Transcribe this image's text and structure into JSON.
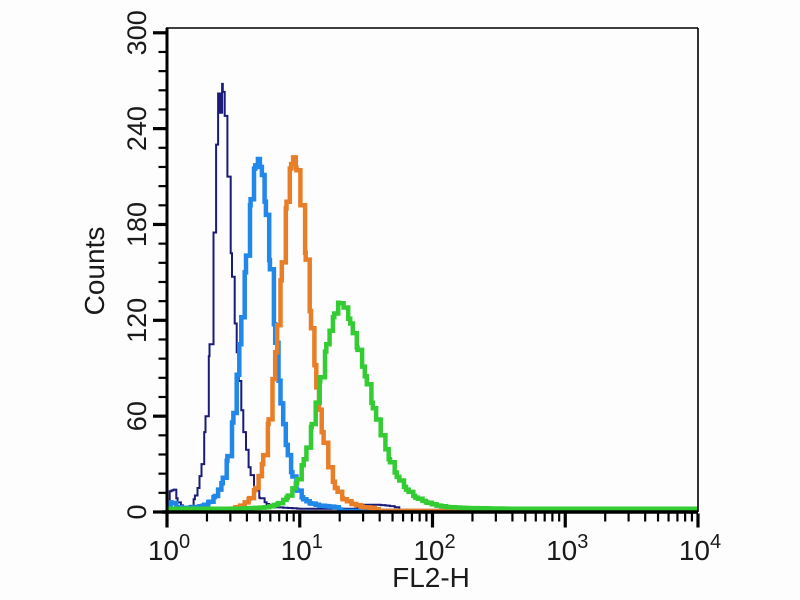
{
  "figure": {
    "xlabel": "FL2-H",
    "ylabel": "Counts",
    "background": "#ffffff",
    "axis_color": "#000000"
  },
  "chart_data": {
    "type": "line",
    "subtype": "flow_cytometry_histogram_overlay",
    "title": "",
    "xlabel": "FL2-H",
    "ylabel": "Counts",
    "x_scale": "log10",
    "xlim_log10": [
      0,
      4
    ],
    "x_tick_exponents": [
      0,
      1,
      2,
      3,
      4
    ],
    "x_minor_ticks_per_decade": [
      2,
      3,
      4,
      5,
      6,
      7,
      8,
      9
    ],
    "ylim": [
      0,
      303
    ],
    "y_ticks": [
      0,
      60,
      120,
      180,
      240,
      300
    ],
    "y_minor_step": 12,
    "grid": false,
    "legend": false,
    "bin_width_log10": 0.035,
    "series": [
      {
        "name": "navy-histogram",
        "color": "#1b1b78",
        "line_width": 2,
        "peak_fl2h": 2.6,
        "peak_counts": 268,
        "points_log10x_counts": [
          [
            0,
            2
          ],
          [
            0.02,
            13
          ],
          [
            0.05,
            14
          ],
          [
            0.08,
            6
          ],
          [
            0.12,
            3
          ],
          [
            0.17,
            3
          ],
          [
            0.2,
            8
          ],
          [
            0.23,
            15
          ],
          [
            0.26,
            30
          ],
          [
            0.29,
            60
          ],
          [
            0.32,
            105
          ],
          [
            0.35,
            175
          ],
          [
            0.37,
            230
          ],
          [
            0.385,
            262
          ],
          [
            0.4,
            250
          ],
          [
            0.415,
            268
          ],
          [
            0.435,
            248
          ],
          [
            0.455,
            210
          ],
          [
            0.48,
            162
          ],
          [
            0.51,
            118
          ],
          [
            0.54,
            82
          ],
          [
            0.575,
            50
          ],
          [
            0.615,
            28
          ],
          [
            0.655,
            15
          ],
          [
            0.695,
            9
          ],
          [
            0.75,
            5
          ],
          [
            0.82,
            3
          ],
          [
            1.0,
            2
          ],
          [
            1.2,
            2
          ],
          [
            1.4,
            2
          ],
          [
            1.45,
            4.5
          ],
          [
            1.58,
            4.5
          ],
          [
            1.66,
            4
          ],
          [
            1.72,
            3
          ],
          [
            1.76,
            0.7
          ],
          [
            4.0,
            0.5
          ]
        ]
      },
      {
        "name": "blue-histogram",
        "color": "#2187e8",
        "line_width": 4.5,
        "peak_fl2h": 4.8,
        "peak_counts": 221,
        "points_log10x_counts": [
          [
            0,
            4
          ],
          [
            0.03,
            6
          ],
          [
            0.07,
            3
          ],
          [
            0.13,
            2.5
          ],
          [
            0.2,
            3
          ],
          [
            0.27,
            4
          ],
          [
            0.31,
            6
          ],
          [
            0.36,
            10
          ],
          [
            0.41,
            18
          ],
          [
            0.45,
            32
          ],
          [
            0.5,
            62
          ],
          [
            0.545,
            105
          ],
          [
            0.585,
            150
          ],
          [
            0.625,
            192
          ],
          [
            0.655,
            215
          ],
          [
            0.685,
            221
          ],
          [
            0.715,
            211
          ],
          [
            0.745,
            186
          ],
          [
            0.775,
            152
          ],
          [
            0.815,
            106
          ],
          [
            0.855,
            68
          ],
          [
            0.895,
            42
          ],
          [
            0.935,
            25
          ],
          [
            0.975,
            14
          ],
          [
            1.025,
            8
          ],
          [
            1.075,
            5.5
          ],
          [
            1.145,
            4
          ],
          [
            1.215,
            3.5
          ],
          [
            1.27,
            3
          ],
          [
            1.31,
            0.7
          ],
          [
            4.0,
            0.4
          ]
        ]
      },
      {
        "name": "orange-histogram",
        "color": "#e87f28",
        "line_width": 4.5,
        "peak_fl2h": 8.9,
        "peak_counts": 222,
        "points_log10x_counts": [
          [
            0.375,
            1
          ],
          [
            0.475,
            2
          ],
          [
            0.555,
            4
          ],
          [
            0.615,
            8
          ],
          [
            0.665,
            15
          ],
          [
            0.715,
            30
          ],
          [
            0.765,
            58
          ],
          [
            0.815,
            100
          ],
          [
            0.855,
            145
          ],
          [
            0.895,
            190
          ],
          [
            0.925,
            215
          ],
          [
            0.95,
            222
          ],
          [
            0.975,
            214
          ],
          [
            1.005,
            192
          ],
          [
            1.045,
            158
          ],
          [
            1.085,
            115
          ],
          [
            1.125,
            78
          ],
          [
            1.165,
            50
          ],
          [
            1.215,
            28
          ],
          [
            1.265,
            15
          ],
          [
            1.325,
            8
          ],
          [
            1.395,
            5
          ],
          [
            1.475,
            3
          ],
          [
            1.545,
            2.5
          ],
          [
            1.595,
            0.7
          ],
          [
            4.0,
            0.4
          ]
        ]
      },
      {
        "name": "green-histogram",
        "color": "#33cc33",
        "line_width": 4.5,
        "peak_fl2h": 19.5,
        "peak_counts": 131,
        "points_log10x_counts": [
          [
            0,
            2
          ],
          [
            0.3,
            2
          ],
          [
            0.5,
            2
          ],
          [
            0.65,
            2.5
          ],
          [
            0.75,
            3
          ],
          [
            0.83,
            5
          ],
          [
            0.9,
            9
          ],
          [
            0.97,
            18
          ],
          [
            1.03,
            33
          ],
          [
            1.09,
            55
          ],
          [
            1.15,
            82
          ],
          [
            1.2,
            105
          ],
          [
            1.25,
            122
          ],
          [
            1.29,
            131
          ],
          [
            1.33,
            128
          ],
          [
            1.38,
            118
          ],
          [
            1.43,
            103
          ],
          [
            1.49,
            85
          ],
          [
            1.55,
            65
          ],
          [
            1.61,
            48
          ],
          [
            1.67,
            33
          ],
          [
            1.73,
            22
          ],
          [
            1.8,
            14
          ],
          [
            1.87,
            9
          ],
          [
            1.95,
            6
          ],
          [
            2.03,
            4
          ],
          [
            2.12,
            3
          ],
          [
            2.25,
            2.5
          ],
          [
            2.6,
            2
          ],
          [
            3.0,
            2
          ],
          [
            3.5,
            2
          ],
          [
            4.0,
            2
          ]
        ]
      }
    ]
  }
}
